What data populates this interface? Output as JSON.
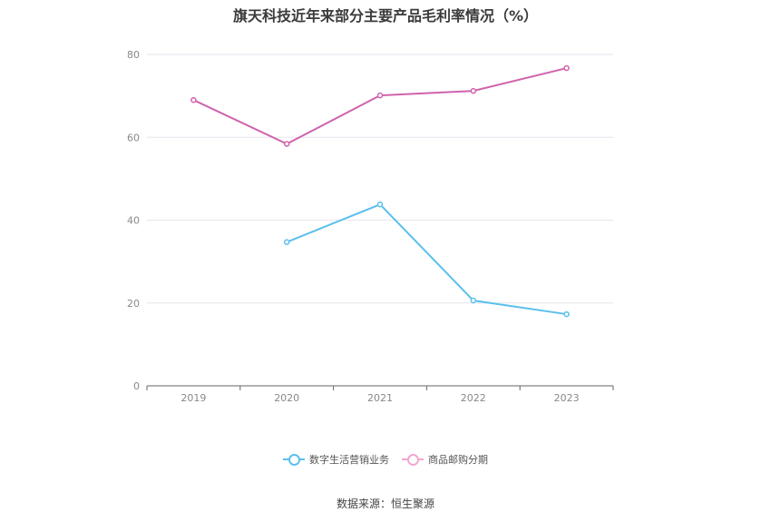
{
  "chart_data": {
    "type": "line",
    "title": "旗天科技近年来部分主要产品毛利率情况（%）",
    "categories": [
      "2019",
      "2020",
      "2021",
      "2022",
      "2023"
    ],
    "ylim": [
      0,
      80
    ],
    "yticks": [
      0,
      20,
      40,
      60,
      80
    ],
    "grid": true,
    "legend_position": "bottom",
    "series": [
      {
        "name": "数字生活营销业务",
        "color": "#5bc0eb",
        "values": [
          null,
          34.7,
          43.8,
          20.6,
          17.3
        ]
      },
      {
        "name": "商品邮购分期",
        "color": "#cf63ad",
        "values": [
          69.0,
          58.4,
          70.1,
          71.2,
          76.7
        ]
      }
    ],
    "legend_colors": [
      "#5bc0eb",
      "#f0a8d0"
    ],
    "source": "数据来源：恒生聚源"
  }
}
